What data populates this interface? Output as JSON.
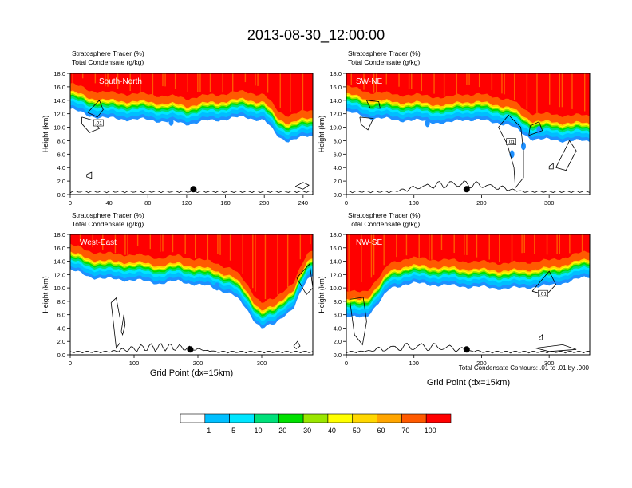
{
  "title": "2013-08-30_12:00:00",
  "labels": {
    "tracer": "Stratosphere Tracer   (%)",
    "condensate": "Total Condensate   (g/kg)",
    "ylabel": "Height (km)",
    "xlabel": "Grid Point (dx=15km)",
    "contour_note": "Total Condensate Contours: .01 to .01 by .000",
    "contour_value": ".01"
  },
  "colorbar": {
    "levels": [
      "1",
      "5",
      "10",
      "20",
      "30",
      "40",
      "50",
      "60",
      "70",
      "100"
    ],
    "colors": [
      "#ffffff",
      "#1e90ff",
      "#00bfff",
      "#00e5ff",
      "#00e07a",
      "#00e000",
      "#9ae600",
      "#ffff00",
      "#ffd700",
      "#ffa500",
      "#ff5a00",
      "#ff0000"
    ]
  },
  "chart_data": [
    {
      "type": "heatmap",
      "name": "South-North",
      "xlim": [
        0,
        250
      ],
      "ylim": [
        0,
        18
      ],
      "xticks": [
        0,
        40,
        80,
        120,
        160,
        200,
        240
      ],
      "yticks": [
        "0.0",
        "2.0",
        "4.0",
        "6.0",
        "8.0",
        "10.0",
        "12.0",
        "14.0",
        "16.0",
        "18.0"
      ],
      "marker_x": 127,
      "tropopause_km": [
        [
          0,
          15.2
        ],
        [
          20,
          14.2
        ],
        [
          40,
          13.8
        ],
        [
          80,
          13.6
        ],
        [
          110,
          13.2
        ],
        [
          120,
          13.0
        ],
        [
          140,
          13.4
        ],
        [
          165,
          13.8
        ],
        [
          180,
          14.0
        ],
        [
          200,
          13.5
        ],
        [
          215,
          11.0
        ],
        [
          225,
          10.5
        ],
        [
          240,
          11.0
        ],
        [
          250,
          11.2
        ]
      ],
      "spots": [
        [
          104,
          10.8
        ]
      ],
      "contours": [
        [
          [
            18,
            12.2
          ],
          [
            30,
            14.0
          ],
          [
            34,
            12.6
          ],
          [
            28,
            11.5
          ],
          [
            18,
            12.2
          ]
        ],
        [
          [
            12,
            11.5
          ],
          [
            24,
            11.0
          ],
          [
            30,
            9.8
          ],
          [
            20,
            9.2
          ],
          [
            12,
            10.5
          ],
          [
            12,
            11.5
          ]
        ],
        [
          [
            17,
            3.0
          ],
          [
            22,
            3.3
          ],
          [
            22,
            2.4
          ],
          [
            17,
            2.6
          ],
          [
            17,
            3.0
          ]
        ],
        [
          [
            232,
            1.2
          ],
          [
            240,
            1.8
          ],
          [
            246,
            1.4
          ],
          [
            240,
            0.8
          ],
          [
            232,
            1.2
          ]
        ]
      ],
      "contour_label_x": 25,
      "contour_label_y": 10.3
    },
    {
      "type": "heatmap",
      "name": "SW-NE",
      "xlim": [
        0,
        360
      ],
      "ylim": [
        0,
        18
      ],
      "xticks": [
        0,
        100,
        200,
        300
      ],
      "yticks": [
        "0.0",
        "2.0",
        "4.0",
        "6.0",
        "8.0",
        "10.0",
        "12.0",
        "14.0",
        "16.0",
        "18.0"
      ],
      "marker_x": 178,
      "tropopause_km": [
        [
          0,
          14.8
        ],
        [
          30,
          14.0
        ],
        [
          70,
          13.6
        ],
        [
          120,
          13.4
        ],
        [
          150,
          13.0
        ],
        [
          170,
          13.7
        ],
        [
          200,
          13.5
        ],
        [
          225,
          13.2
        ],
        [
          245,
          12.6
        ],
        [
          262,
          11.5
        ],
        [
          275,
          10.8
        ],
        [
          300,
          10.6
        ],
        [
          330,
          10.5
        ],
        [
          360,
          10.4
        ]
      ],
      "spots": [
        [
          120,
          10.6
        ],
        [
          245,
          6.0
        ],
        [
          262,
          7.2
        ],
        [
          285,
          9.6
        ]
      ],
      "contours": [
        [
          [
            30,
            14.0
          ],
          [
            48,
            13.8
          ],
          [
            50,
            12.8
          ],
          [
            35,
            12.9
          ],
          [
            30,
            14.0
          ]
        ],
        [
          [
            20,
            11.5
          ],
          [
            40,
            11.3
          ],
          [
            32,
            9.6
          ],
          [
            22,
            10.4
          ],
          [
            20,
            11.5
          ]
        ],
        [
          [
            225,
            10.0
          ],
          [
            238,
            7.5
          ],
          [
            248,
            4.0
          ],
          [
            250,
            1.0
          ],
          [
            262,
            2.5
          ],
          [
            262,
            6.5
          ],
          [
            258,
            10.0
          ],
          [
            240,
            11.8
          ],
          [
            225,
            10.0
          ]
        ],
        [
          [
            270,
            8.8
          ],
          [
            290,
            9.5
          ],
          [
            285,
            10.8
          ],
          [
            272,
            10.2
          ],
          [
            270,
            8.8
          ]
        ],
        [
          [
            310,
            4.0
          ],
          [
            330,
            8.0
          ],
          [
            340,
            6.5
          ],
          [
            325,
            3.6
          ],
          [
            310,
            4.0
          ]
        ],
        [
          [
            300,
            4.2
          ],
          [
            306,
            4.6
          ],
          [
            306,
            3.8
          ],
          [
            300,
            3.8
          ],
          [
            300,
            4.2
          ]
        ]
      ],
      "contour_label_x": 238,
      "contour_label_y": 7.5
    },
    {
      "type": "heatmap",
      "name": "West-East",
      "xlim": [
        0,
        380
      ],
      "ylim": [
        0,
        18
      ],
      "xticks": [
        0,
        100,
        200,
        300
      ],
      "yticks": [
        "0.0",
        "2.0",
        "4.0",
        "6.0",
        "8.0",
        "10.0",
        "12.0",
        "14.0",
        "16.0",
        "18.0"
      ],
      "marker_x": 188,
      "tropopause_km": [
        [
          0,
          15.2
        ],
        [
          30,
          14.2
        ],
        [
          60,
          13.8
        ],
        [
          100,
          13.7
        ],
        [
          140,
          13.2
        ],
        [
          170,
          13.5
        ],
        [
          200,
          13.0
        ],
        [
          230,
          12.4
        ],
        [
          255,
          11.5
        ],
        [
          275,
          9.5
        ],
        [
          290,
          7.5
        ],
        [
          300,
          6.5
        ],
        [
          320,
          7.0
        ],
        [
          335,
          8.5
        ],
        [
          350,
          9.5
        ],
        [
          370,
          13.5
        ],
        [
          380,
          14.5
        ]
      ],
      "spots": [
        [
          230,
          10.2
        ]
      ],
      "contours": [
        [
          [
            64,
            7.8
          ],
          [
            68,
            4.5
          ],
          [
            72,
            1.0
          ],
          [
            78,
            1.8
          ],
          [
            78,
            5.5
          ],
          [
            72,
            8.5
          ],
          [
            64,
            7.8
          ]
        ],
        [
          [
            80,
            3.5
          ],
          [
            84,
            6.0
          ],
          [
            86,
            4.5
          ],
          [
            82,
            3.0
          ],
          [
            80,
            3.5
          ]
        ],
        [
          [
            355,
            11.5
          ],
          [
            375,
            13.6
          ],
          [
            380,
            10.0
          ],
          [
            370,
            9.0
          ],
          [
            355,
            11.5
          ]
        ],
        [
          [
            350,
            1.3
          ],
          [
            356,
            2.0
          ],
          [
            360,
            1.3
          ],
          [
            354,
            0.9
          ],
          [
            350,
            1.3
          ]
        ]
      ],
      "contour_label_x": 0,
      "contour_label_y": 0
    },
    {
      "type": "heatmap",
      "name": "NW-SE",
      "xlim": [
        0,
        360
      ],
      "ylim": [
        0,
        18
      ],
      "xticks": [
        0,
        100,
        200,
        300
      ],
      "yticks": [
        "0.0",
        "2.0",
        "4.0",
        "6.0",
        "8.0",
        "10.0",
        "12.0",
        "14.0",
        "16.0",
        "18.0"
      ],
      "marker_x": 178,
      "tropopause_km": [
        [
          0,
          8.2
        ],
        [
          15,
          8.0
        ],
        [
          30,
          8.3
        ],
        [
          50,
          10.5
        ],
        [
          65,
          12.4
        ],
        [
          90,
          13.2
        ],
        [
          130,
          13.0
        ],
        [
          160,
          12.8
        ],
        [
          200,
          12.6
        ],
        [
          240,
          12.4
        ],
        [
          270,
          12.6
        ],
        [
          300,
          12.8
        ],
        [
          330,
          13.5
        ],
        [
          360,
          14.2
        ]
      ],
      "spots": [],
      "contours": [
        [
          [
            5,
            8.3
          ],
          [
            25,
            8.6
          ],
          [
            30,
            5.0
          ],
          [
            24,
            1.5
          ],
          [
            12,
            3.0
          ],
          [
            5,
            8.3
          ]
        ],
        [
          [
            275,
            9.5
          ],
          [
            300,
            12.5
          ],
          [
            310,
            10.5
          ],
          [
            296,
            9.0
          ],
          [
            275,
            9.5
          ]
        ],
        [
          [
            285,
            2.5
          ],
          [
            290,
            3.0
          ],
          [
            290,
            2.2
          ],
          [
            285,
            2.3
          ],
          [
            285,
            2.5
          ]
        ],
        [
          [
            280,
            1.0
          ],
          [
            320,
            1.5
          ],
          [
            340,
            0.8
          ],
          [
            300,
            0.5
          ],
          [
            280,
            1.0
          ]
        ]
      ],
      "contour_label_x": 285,
      "contour_label_y": 8.8
    }
  ]
}
